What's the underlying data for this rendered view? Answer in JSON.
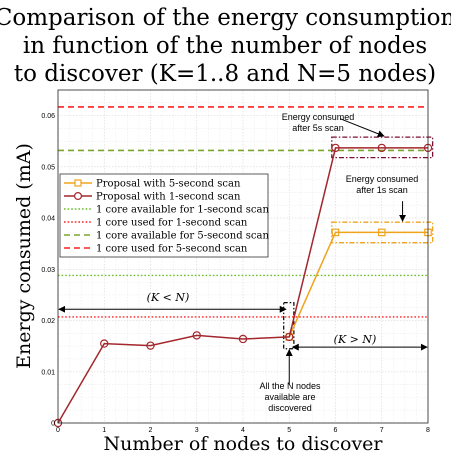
{
  "chart_data": {
    "type": "line",
    "title_lines": [
      "Comparison of the energy consumption",
      "in function of the number of nodes",
      "to discover (K=1..8 and N=5 nodes)"
    ],
    "xlabel": "Number of nodes to discover",
    "ylabel": "Energy consumed (mA)",
    "xlim": [
      0,
      8
    ],
    "ylim": [
      0,
      0.065
    ],
    "xticks": [
      0,
      1,
      2,
      3,
      4,
      5,
      6,
      7,
      8
    ],
    "yticks": [
      0,
      0.01,
      0.02,
      0.03,
      0.04,
      0.05,
      0.06
    ],
    "ytick_labels": [
      "0",
      "0.01",
      "0.02",
      "0.03",
      "0.04",
      "0.05",
      "0.06"
    ],
    "grid": true,
    "legend_position": "left, mid-upper",
    "series": [
      {
        "name": "Proposal with 5-second scan",
        "color": "#f0a31c",
        "marker": "square",
        "style": "solid",
        "x": [
          5,
          6,
          7,
          8
        ],
        "y": [
          0.0168,
          0.0372,
          0.0372,
          0.0372
        ]
      },
      {
        "name": "Proposal with 1-second scan",
        "color": "#a3272c",
        "marker": "circle",
        "style": "solid",
        "x": [
          0,
          1,
          2,
          3,
          4,
          5,
          6,
          7,
          8
        ],
        "y": [
          0,
          0.0155,
          0.0151,
          0.0171,
          0.0164,
          0.0168,
          0.0537,
          0.0537,
          0.0537
        ]
      }
    ],
    "reference_lines": [
      {
        "name": "1 core available for 1-second scan",
        "y": 0.0288,
        "color": "#6bbf2a",
        "style": "dotted"
      },
      {
        "name": "1 core used for 1-second scan",
        "y": 0.0207,
        "color": "#ff2020",
        "style": "dotted"
      },
      {
        "name": "1 core available for 5-second scan",
        "y": 0.0532,
        "color": "#7aa52c",
        "style": "dashed"
      },
      {
        "name": "1 core used for 5-second scan",
        "y": 0.0617,
        "color": "#ff2020",
        "style": "dashed"
      }
    ],
    "annotations": {
      "energy_5s": [
        "Energy consumed",
        "after 5s scan"
      ],
      "energy_1s": [
        "Energy consumed",
        "after 1s scan"
      ],
      "all_nodes": [
        "All the N nodes",
        "available are",
        "discovered"
      ],
      "k_less_n": "(K < N)",
      "k_greater_n": "(K > N)"
    }
  }
}
